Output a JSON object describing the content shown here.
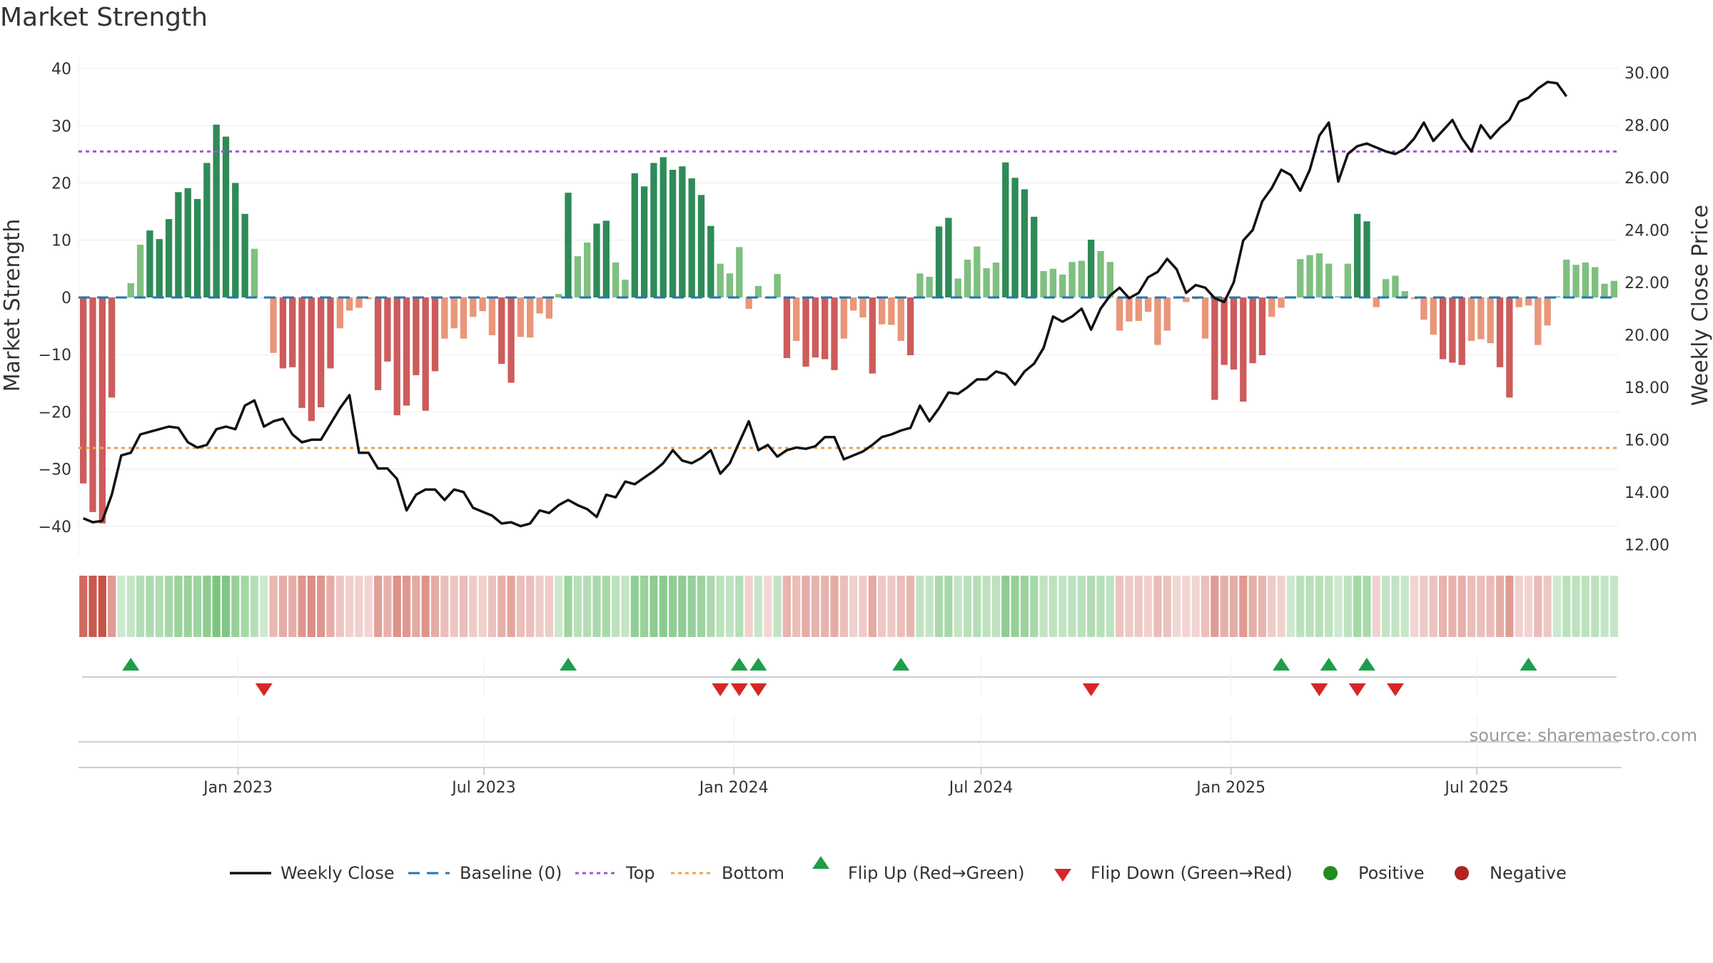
{
  "chart_data": {
    "type": "bar",
    "title": "Market Strength",
    "ylabel_left": "Market Strength",
    "ylabel_right": "Weekly Close Price",
    "ylim_left": [
      -45,
      42
    ],
    "ylim_right": [
      11.6,
      30.6
    ],
    "yticks_left": [
      40,
      30,
      20,
      10,
      0,
      -10,
      -20,
      -30,
      -40
    ],
    "yticks_right": [
      "30.00",
      "28.00",
      "26.00",
      "24.00",
      "22.00",
      "20.00",
      "18.00",
      "16.00",
      "14.00",
      "12.00"
    ],
    "x_ticks": [
      "Jan 2023",
      "Jul 2023",
      "Jan 2024",
      "Jul 2024",
      "Jan 2025",
      "Jul 2025"
    ],
    "top_level": 25.5,
    "bottom_level": -26.3,
    "strength": [
      -32.5,
      -37.5,
      -39.5,
      -17.5,
      0,
      2.5,
      9.2,
      11.7,
      10.2,
      13.7,
      18.4,
      19.1,
      17.2,
      23.5,
      30.2,
      28.1,
      20,
      14.6,
      8.5,
      0,
      -9.7,
      -12.4,
      -12.2,
      -19.3,
      -21.6,
      -19.2,
      -12.4,
      -5.4,
      -2.3,
      -1.8,
      -0.3,
      -16.2,
      -11.2,
      -20.6,
      -18.9,
      -13.6,
      -19.8,
      -12.9,
      -7.2,
      -5.4,
      -7.2,
      -3.4,
      -2.4,
      -6.6,
      -11.6,
      -14.9,
      -6.9,
      -7,
      -2.8,
      -3.7,
      0.6,
      18.3,
      7.2,
      9.6,
      12.9,
      13.4,
      6.1,
      3.1,
      21.7,
      19.4,
      23.5,
      24.5,
      22.3,
      22.9,
      20.8,
      17.9,
      12.5,
      5.9,
      4.2,
      8.8,
      -2,
      2,
      -0.2,
      4.1,
      -10.6,
      -7.6,
      -12.1,
      -10.5,
      -10.8,
      -12.7,
      -7.2,
      -2.3,
      -3.5,
      -13.3,
      -4.7,
      -4.8,
      -7.6,
      -10.1,
      4.2,
      3.6,
      12.4,
      13.9,
      3.3,
      6.6,
      8.9,
      5.1,
      6.1,
      23.6,
      20.9,
      18.9,
      14.1,
      4.6,
      5,
      4,
      6.2,
      6.4,
      10.1,
      8.1,
      6.2,
      -5.8,
      -4.2,
      -4.1,
      -2.5,
      -8.3,
      -5.8,
      -0.2,
      -0.8,
      -0.3,
      -7.2,
      -17.9,
      -11.8,
      -12.6,
      -18.2,
      -11.5,
      -10.1,
      -3.4,
      -1.8,
      0.2,
      6.7,
      7.4,
      7.7,
      5.9,
      0.2,
      5.9,
      14.6,
      13.3,
      -1.7,
      3.2,
      3.8,
      1.1,
      -0.3,
      -3.9,
      -6.5,
      -10.8,
      -11.4,
      -11.8,
      -7.6,
      -7.3,
      -8,
      -12.2,
      -17.5,
      -1.7,
      -1.4,
      -8.3,
      -4.9,
      0.2,
      6.6,
      5.7,
      6.1,
      5.3,
      2.4,
      2.9
    ],
    "series": [
      {
        "name": "Weekly Close",
        "values": [
          13,
          12.85,
          12.9,
          13.9,
          15.4,
          15.5,
          16.2,
          16.3,
          16.4,
          16.5,
          16.45,
          15.9,
          15.7,
          15.8,
          16.4,
          16.5,
          16.4,
          17.3,
          17.5,
          16.5,
          16.7,
          16.8,
          16.2,
          15.9,
          16,
          16,
          16.6,
          17.2,
          17.7,
          15.5,
          15.5,
          14.9,
          14.9,
          14.5,
          13.3,
          13.9,
          14.1,
          14.1,
          13.7,
          14.1,
          14,
          13.4,
          13.25,
          13.1,
          12.8,
          12.85,
          12.7,
          12.8,
          13.3,
          13.2,
          13.5,
          13.7,
          13.5,
          13.35,
          13.05,
          13.9,
          13.8,
          14.4,
          14.3,
          14.55,
          14.8,
          15.1,
          15.6,
          15.2,
          15.1,
          15.3,
          15.6,
          14.7,
          15.1,
          15.9,
          16.7,
          15.6,
          15.8,
          15.35,
          15.6,
          15.7,
          15.65,
          15.75,
          16.1,
          16.1,
          15.25,
          15.4,
          15.55,
          15.8,
          16.1,
          16.2,
          16.35,
          16.45,
          17.3,
          16.7,
          17.2,
          17.8,
          17.75,
          18,
          18.3,
          18.3,
          18.6,
          18.5,
          18.1,
          18.6,
          18.9,
          19.5,
          20.7,
          20.5,
          20.7,
          21,
          20.2,
          21,
          21.5,
          21.8,
          21.4,
          21.6,
          22.2,
          22.4,
          22.9,
          22.5,
          21.6,
          21.9,
          21.8,
          21.4,
          21.25,
          22,
          23.6,
          24,
          25.1,
          25.6,
          26.3,
          26.1,
          25.5,
          26.3,
          27.6,
          28.1,
          25.85,
          26.9,
          27.2,
          27.3,
          27.15,
          27,
          26.9,
          27.1,
          27.5,
          28.1,
          27.4,
          27.8,
          28.2,
          27.5,
          27,
          28,
          27.5,
          27.9,
          28.2,
          28.9,
          29.05,
          29.4,
          29.65,
          29.6,
          29.1
        ]
      }
    ],
    "flip_up_index": [
      5,
      51,
      69,
      71,
      86,
      126,
      131,
      135,
      152
    ],
    "flip_down_index": [
      19,
      67,
      69,
      71,
      106,
      130,
      134,
      138
    ],
    "legend": [
      "Weekly Close",
      "Baseline (0)",
      "Top",
      "Bottom",
      "Flip Up (Red→Green)",
      "Flip Down (Green→Red)",
      "Positive",
      "Negative"
    ],
    "legend_position": "bottom-center",
    "grid": true
  },
  "source": "source: sharemaestro.com",
  "colors": {
    "pos_dark": "#2e8b57",
    "pos_light": "#7fbf7f",
    "neg_dark": "#cd5c5c",
    "neg_light": "#e9967a",
    "line": "#111111",
    "baseline": "#1f77b4",
    "top": "#9b59d0",
    "bottom": "#f0a050",
    "flip_up": "#1e9e4a",
    "flip_down": "#d62728",
    "positive_dot": "#228b22",
    "negative_dot": "#b22222"
  }
}
